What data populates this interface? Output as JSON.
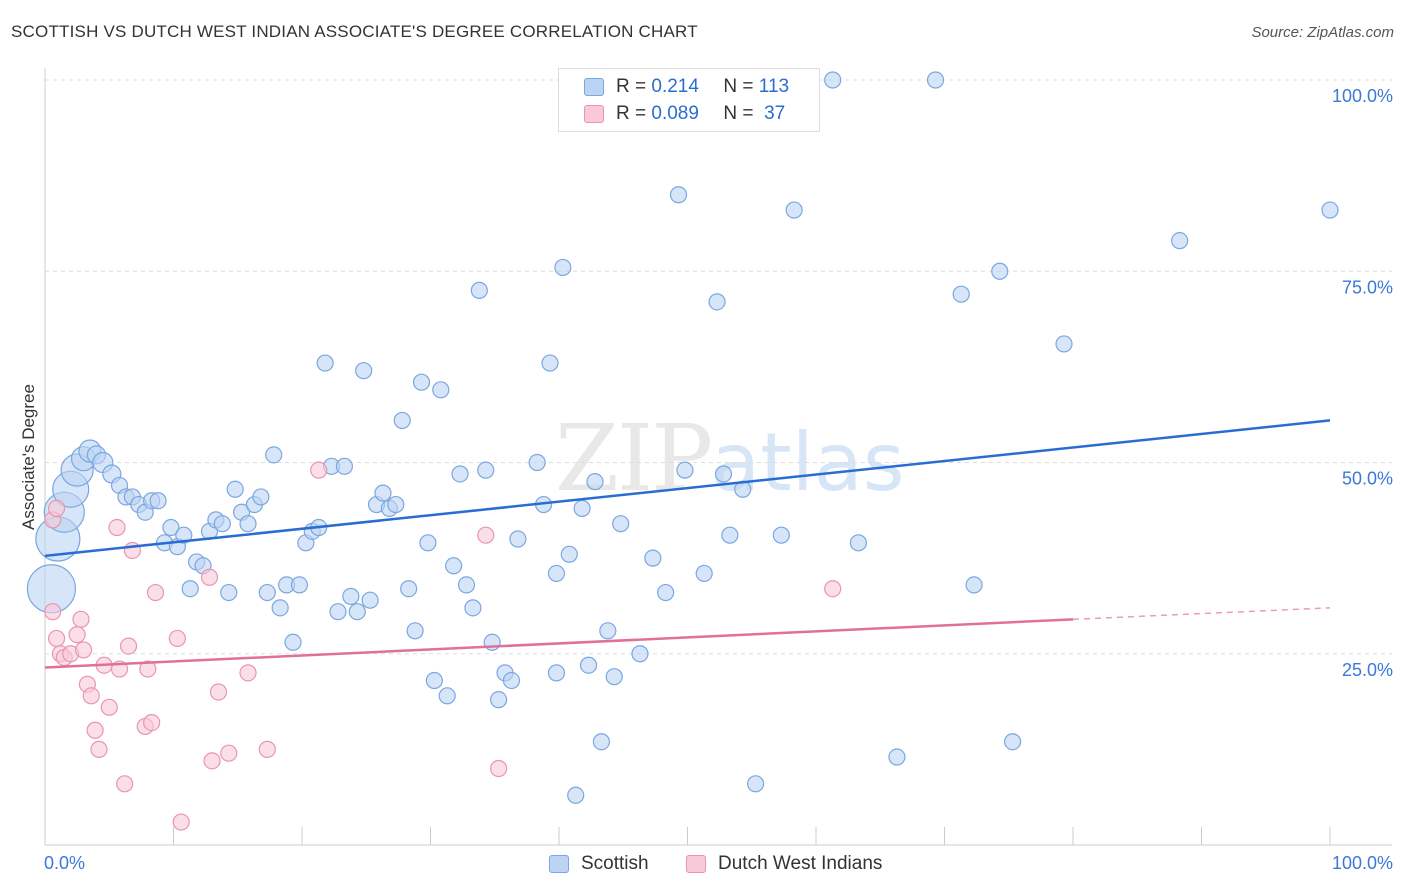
{
  "header": {
    "title": "SCOTTISH VS DUTCH WEST INDIAN ASSOCIATE'S DEGREE CORRELATION CHART",
    "source": "Source: ZipAtlas.com"
  },
  "watermark": {
    "zip": "ZIP",
    "atlas": "atlas"
  },
  "legend_top": {
    "r_label": "R =",
    "n_label": "N =",
    "series": [
      {
        "name": "Scottish",
        "r": "0.214",
        "n": "113"
      },
      {
        "name": "Dutch West Indians",
        "r": "0.089",
        "n": "37"
      }
    ]
  },
  "legend_bottom": [
    "Scottish",
    "Dutch West Indians"
  ],
  "colors": {
    "blue_fill": "#bcd4f4",
    "blue_stroke": "#7aa7e0",
    "blue_line": "#2a6dd2",
    "pink_fill": "#f9c9d8",
    "pink_stroke": "#e995b1",
    "pink_line": "#e0709a",
    "tick_label": "#3b78d8",
    "grid": "#dddddd"
  },
  "chart_data": {
    "type": "scatter",
    "title": "SCOTTISH VS DUTCH WEST INDIAN ASSOCIATE'S DEGREE CORRELATION CHART",
    "xlabel": "",
    "ylabel": "Associate's Degree",
    "xlim": [
      0,
      100
    ],
    "ylim": [
      0,
      100
    ],
    "x_tick_labels": [
      "0.0%",
      "100.0%"
    ],
    "y_tick_values": [
      25,
      50,
      75,
      100
    ],
    "y_tick_labels": [
      "25.0%",
      "50.0%",
      "75.0%",
      "100.0%"
    ],
    "grid": true,
    "legend_position": "bottom",
    "series": [
      {
        "name": "Scottish",
        "color": "#2a6dd2",
        "trend": {
          "x": [
            0,
            100
          ],
          "y": [
            37.8,
            55.5
          ]
        },
        "points": [
          {
            "x": 0.5,
            "y": 33.5,
            "s": 24
          },
          {
            "x": 1.0,
            "y": 40,
            "s": 22
          },
          {
            "x": 1.5,
            "y": 43.5,
            "s": 20
          },
          {
            "x": 2.0,
            "y": 46.5,
            "s": 18
          },
          {
            "x": 2.5,
            "y": 49,
            "s": 16
          },
          {
            "x": 3.0,
            "y": 50.5,
            "s": 12
          },
          {
            "x": 3.5,
            "y": 51.5,
            "s": 11
          },
          {
            "x": 4.0,
            "y": 51,
            "s": 9
          },
          {
            "x": 4.5,
            "y": 50,
            "s": 10
          },
          {
            "x": 5.2,
            "y": 48.5,
            "s": 9
          },
          {
            "x": 5.8,
            "y": 47,
            "s": 8
          },
          {
            "x": 6.3,
            "y": 45.5,
            "s": 8
          },
          {
            "x": 6.8,
            "y": 45.5,
            "s": 8
          },
          {
            "x": 7.3,
            "y": 44.5,
            "s": 8
          },
          {
            "x": 7.8,
            "y": 43.5,
            "s": 8
          },
          {
            "x": 8.3,
            "y": 45,
            "s": 8
          },
          {
            "x": 8.8,
            "y": 45,
            "s": 8
          },
          {
            "x": 9.3,
            "y": 39.5,
            "s": 8
          },
          {
            "x": 9.8,
            "y": 41.5,
            "s": 8
          },
          {
            "x": 10.3,
            "y": 39,
            "s": 8
          },
          {
            "x": 10.8,
            "y": 40.5,
            "s": 8
          },
          {
            "x": 11.3,
            "y": 33.5,
            "s": 8
          },
          {
            "x": 11.8,
            "y": 37,
            "s": 8
          },
          {
            "x": 12.3,
            "y": 36.5,
            "s": 8
          },
          {
            "x": 12.8,
            "y": 41,
            "s": 8
          },
          {
            "x": 13.3,
            "y": 42.5,
            "s": 8
          },
          {
            "x": 13.8,
            "y": 42,
            "s": 8
          },
          {
            "x": 14.3,
            "y": 33,
            "s": 8
          },
          {
            "x": 14.8,
            "y": 46.5,
            "s": 8
          },
          {
            "x": 15.3,
            "y": 43.5,
            "s": 8
          },
          {
            "x": 15.8,
            "y": 42,
            "s": 8
          },
          {
            "x": 16.3,
            "y": 44.5,
            "s": 8
          },
          {
            "x": 16.8,
            "y": 45.5,
            "s": 8
          },
          {
            "x": 17.3,
            "y": 33,
            "s": 8
          },
          {
            "x": 17.8,
            "y": 51,
            "s": 8
          },
          {
            "x": 18.3,
            "y": 31,
            "s": 8
          },
          {
            "x": 18.8,
            "y": 34,
            "s": 8
          },
          {
            "x": 19.3,
            "y": 26.5,
            "s": 8
          },
          {
            "x": 19.8,
            "y": 34,
            "s": 8
          },
          {
            "x": 20.3,
            "y": 39.5,
            "s": 8
          },
          {
            "x": 20.8,
            "y": 41,
            "s": 8
          },
          {
            "x": 21.3,
            "y": 41.5,
            "s": 8
          },
          {
            "x": 21.8,
            "y": 63,
            "s": 8
          },
          {
            "x": 22.3,
            "y": 49.5,
            "s": 8
          },
          {
            "x": 22.8,
            "y": 30.5,
            "s": 8
          },
          {
            "x": 23.3,
            "y": 49.5,
            "s": 8
          },
          {
            "x": 23.8,
            "y": 32.5,
            "s": 8
          },
          {
            "x": 24.3,
            "y": 30.5,
            "s": 8
          },
          {
            "x": 24.8,
            "y": 62,
            "s": 8
          },
          {
            "x": 25.3,
            "y": 32,
            "s": 8
          },
          {
            "x": 25.8,
            "y": 44.5,
            "s": 8
          },
          {
            "x": 26.3,
            "y": 46,
            "s": 8
          },
          {
            "x": 26.8,
            "y": 44,
            "s": 8
          },
          {
            "x": 27.3,
            "y": 44.5,
            "s": 8
          },
          {
            "x": 27.8,
            "y": 55.5,
            "s": 8
          },
          {
            "x": 28.3,
            "y": 33.5,
            "s": 8
          },
          {
            "x": 28.8,
            "y": 28,
            "s": 8
          },
          {
            "x": 29.3,
            "y": 60.5,
            "s": 8
          },
          {
            "x": 29.8,
            "y": 39.5,
            "s": 8
          },
          {
            "x": 30.3,
            "y": 21.5,
            "s": 8
          },
          {
            "x": 30.8,
            "y": 59.5,
            "s": 8
          },
          {
            "x": 31.3,
            "y": 19.5,
            "s": 8
          },
          {
            "x": 31.8,
            "y": 36.5,
            "s": 8
          },
          {
            "x": 32.3,
            "y": 48.5,
            "s": 8
          },
          {
            "x": 32.8,
            "y": 34,
            "s": 8
          },
          {
            "x": 33.3,
            "y": 31,
            "s": 8
          },
          {
            "x": 33.8,
            "y": 72.5,
            "s": 8
          },
          {
            "x": 34.3,
            "y": 49,
            "s": 8
          },
          {
            "x": 34.8,
            "y": 26.5,
            "s": 8
          },
          {
            "x": 35.3,
            "y": 19,
            "s": 8
          },
          {
            "x": 35.8,
            "y": 22.5,
            "s": 8
          },
          {
            "x": 36.3,
            "y": 21.5,
            "s": 8
          },
          {
            "x": 36.8,
            "y": 40,
            "s": 8
          },
          {
            "x": 38.3,
            "y": 50,
            "s": 8
          },
          {
            "x": 38.8,
            "y": 44.5,
            "s": 8
          },
          {
            "x": 39.3,
            "y": 63,
            "s": 8
          },
          {
            "x": 39.8,
            "y": 22.5,
            "s": 8
          },
          {
            "x": 39.8,
            "y": 35.5,
            "s": 8
          },
          {
            "x": 40.3,
            "y": 75.5,
            "s": 8
          },
          {
            "x": 40.8,
            "y": 38,
            "s": 8
          },
          {
            "x": 41.3,
            "y": 6.5,
            "s": 8
          },
          {
            "x": 41.8,
            "y": 44,
            "s": 8
          },
          {
            "x": 42.3,
            "y": 23.5,
            "s": 8
          },
          {
            "x": 42.8,
            "y": 47.5,
            "s": 8
          },
          {
            "x": 43.3,
            "y": 13.5,
            "s": 8
          },
          {
            "x": 43.8,
            "y": 28,
            "s": 8
          },
          {
            "x": 44.3,
            "y": 22,
            "s": 8
          },
          {
            "x": 44.8,
            "y": 42,
            "s": 8
          },
          {
            "x": 46.3,
            "y": 25,
            "s": 8
          },
          {
            "x": 47.3,
            "y": 37.5,
            "s": 8
          },
          {
            "x": 48.3,
            "y": 33,
            "s": 8
          },
          {
            "x": 49.3,
            "y": 85,
            "s": 8
          },
          {
            "x": 49.8,
            "y": 49,
            "s": 8
          },
          {
            "x": 51.3,
            "y": 35.5,
            "s": 8
          },
          {
            "x": 52.3,
            "y": 71,
            "s": 8
          },
          {
            "x": 52.8,
            "y": 48.5,
            "s": 8
          },
          {
            "x": 53.3,
            "y": 40.5,
            "s": 8
          },
          {
            "x": 54.3,
            "y": 46.5,
            "s": 8
          },
          {
            "x": 55.3,
            "y": 8,
            "s": 8
          },
          {
            "x": 57.3,
            "y": 40.5,
            "s": 8
          },
          {
            "x": 58.3,
            "y": 83,
            "s": 8
          },
          {
            "x": 61.3,
            "y": 100,
            "s": 8
          },
          {
            "x": 63.3,
            "y": 39.5,
            "s": 8
          },
          {
            "x": 66.3,
            "y": 11.5,
            "s": 8
          },
          {
            "x": 69.3,
            "y": 100,
            "s": 8
          },
          {
            "x": 71.3,
            "y": 72,
            "s": 8
          },
          {
            "x": 72.3,
            "y": 34,
            "s": 8
          },
          {
            "x": 74.3,
            "y": 75,
            "s": 8
          },
          {
            "x": 75.3,
            "y": 13.5,
            "s": 8
          },
          {
            "x": 79.3,
            "y": 65.5,
            "s": 8
          },
          {
            "x": 88.3,
            "y": 79,
            "s": 8
          },
          {
            "x": 100,
            "y": 83,
            "s": 8
          }
        ]
      },
      {
        "name": "Dutch West Indians",
        "color": "#e0709a",
        "trend": {
          "x": [
            0,
            80,
            100
          ],
          "y": [
            23.2,
            29.5,
            31.0
          ]
        },
        "points": [
          {
            "x": 0.6,
            "y": 42.5,
            "s": 8
          },
          {
            "x": 0.6,
            "y": 30.5,
            "s": 8
          },
          {
            "x": 0.9,
            "y": 27,
            "s": 8
          },
          {
            "x": 1.2,
            "y": 25,
            "s": 8
          },
          {
            "x": 1.5,
            "y": 24.5,
            "s": 8
          },
          {
            "x": 2.0,
            "y": 25,
            "s": 8
          },
          {
            "x": 2.5,
            "y": 27.5,
            "s": 8
          },
          {
            "x": 2.8,
            "y": 29.5,
            "s": 8
          },
          {
            "x": 3.0,
            "y": 25.5,
            "s": 8
          },
          {
            "x": 3.3,
            "y": 21,
            "s": 8
          },
          {
            "x": 3.6,
            "y": 19.5,
            "s": 8
          },
          {
            "x": 3.9,
            "y": 15,
            "s": 8
          },
          {
            "x": 4.2,
            "y": 12.5,
            "s": 8
          },
          {
            "x": 4.6,
            "y": 23.5,
            "s": 8
          },
          {
            "x": 5.0,
            "y": 18,
            "s": 8
          },
          {
            "x": 5.6,
            "y": 41.5,
            "s": 8
          },
          {
            "x": 5.8,
            "y": 23,
            "s": 8
          },
          {
            "x": 6.2,
            "y": 8,
            "s": 8
          },
          {
            "x": 6.5,
            "y": 26,
            "s": 8
          },
          {
            "x": 6.8,
            "y": 38.5,
            "s": 8
          },
          {
            "x": 7.8,
            "y": 15.5,
            "s": 8
          },
          {
            "x": 8.0,
            "y": 23,
            "s": 8
          },
          {
            "x": 8.3,
            "y": 16,
            "s": 8
          },
          {
            "x": 8.6,
            "y": 33,
            "s": 8
          },
          {
            "x": 10.3,
            "y": 27,
            "s": 8
          },
          {
            "x": 10.6,
            "y": 3,
            "s": 8
          },
          {
            "x": 12.8,
            "y": 35,
            "s": 8
          },
          {
            "x": 13.0,
            "y": 11,
            "s": 8
          },
          {
            "x": 13.5,
            "y": 20,
            "s": 8
          },
          {
            "x": 14.3,
            "y": 12,
            "s": 8
          },
          {
            "x": 15.8,
            "y": 22.5,
            "s": 8
          },
          {
            "x": 17.3,
            "y": 12.5,
            "s": 8
          },
          {
            "x": 21.3,
            "y": 49,
            "s": 8
          },
          {
            "x": 34.3,
            "y": 40.5,
            "s": 8
          },
          {
            "x": 35.3,
            "y": 10,
            "s": 8
          },
          {
            "x": 61.3,
            "y": 33.5,
            "s": 8
          },
          {
            "x": 0.9,
            "y": 44,
            "s": 8
          }
        ]
      }
    ]
  }
}
